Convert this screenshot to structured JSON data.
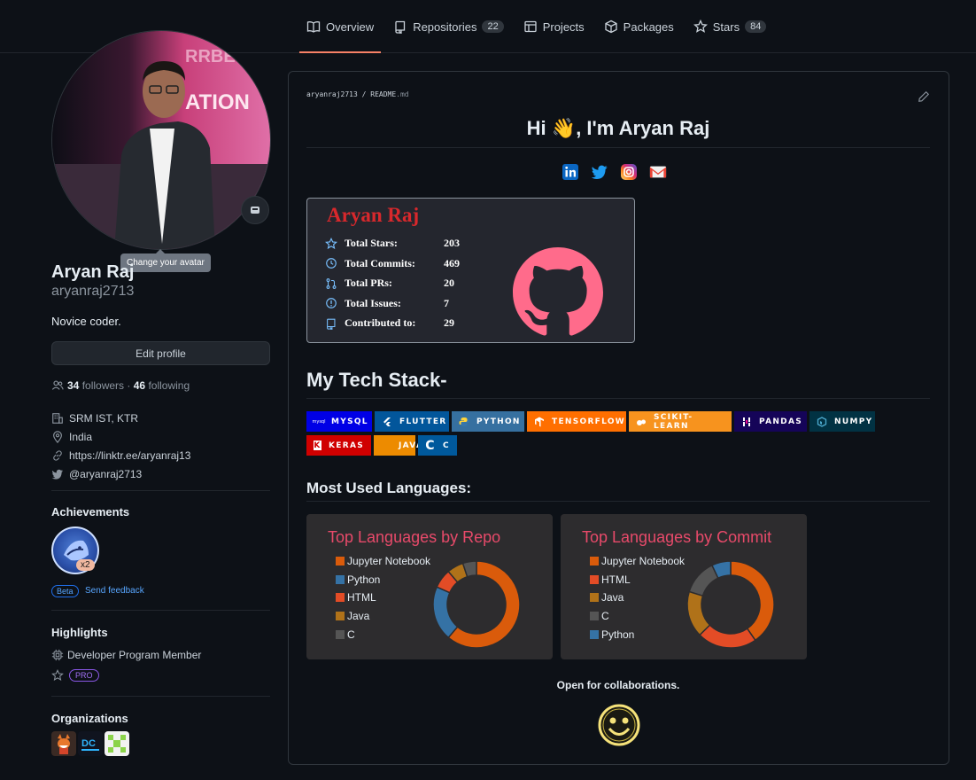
{
  "nav": {
    "tabs": [
      {
        "label": "Overview",
        "icon": "book-icon",
        "count": null,
        "active": true
      },
      {
        "label": "Repositories",
        "icon": "repo-icon",
        "count": "22",
        "active": false
      },
      {
        "label": "Projects",
        "icon": "table-icon",
        "count": null,
        "active": false
      },
      {
        "label": "Packages",
        "icon": "package-icon",
        "count": null,
        "active": false
      },
      {
        "label": "Stars",
        "icon": "star-icon",
        "count": "84",
        "active": false
      }
    ]
  },
  "profile": {
    "avatar_tooltip": "Change your avatar",
    "name": "Aryan Raj",
    "login": "aryanraj2713",
    "bio": "Novice coder.",
    "edit_label": "Edit profile",
    "followers": "34",
    "followers_label": "followers",
    "separator": "·",
    "following": "46",
    "following_label": "following",
    "organization": "SRM IST, KTR",
    "location": "India",
    "website": "https://linktr.ee/aryanraj13",
    "twitter": "@aryanraj2713"
  },
  "achievements": {
    "title": "Achievements",
    "badge_count": "x2",
    "beta": "Beta",
    "feedback": "Send feedback"
  },
  "highlights": {
    "title": "Highlights",
    "program": "Developer Program Member",
    "pro": "PRO"
  },
  "organizations": {
    "title": "Organizations"
  },
  "readme": {
    "breadcrumb_user": "aryanraj2713",
    "breadcrumb_sep": " / ",
    "breadcrumb_file": "README",
    "breadcrumb_ext": ".md",
    "greeting_pre": "Hi ",
    "greeting_emoji": "👋",
    "greeting_post": ", I'm Aryan Raj",
    "tech_title": "My Tech Stack-",
    "langs_title": "Most Used Languages:",
    "collab": "Open for collaborations."
  },
  "stats": {
    "title": "Aryan Raj",
    "rows": [
      {
        "label": "Total Stars:",
        "value": "203",
        "icon": "star-icon"
      },
      {
        "label": "Total Commits:",
        "value": "469",
        "icon": "history-icon"
      },
      {
        "label": "Total PRs:",
        "value": "20",
        "icon": "pull-request-icon"
      },
      {
        "label": "Total Issues:",
        "value": "7",
        "icon": "issue-icon"
      },
      {
        "label": "Contributed to:",
        "value": "29",
        "icon": "repo-icon"
      }
    ],
    "colors": {
      "title": "#d8282c",
      "icon": "#79c0ff",
      "logo": "#ff6b8b"
    }
  },
  "tech_badges": [
    {
      "label": "MYSQL",
      "color": "#0000e6",
      "icon": "mysql-icon",
      "icon_text": "mysql"
    },
    {
      "label": "FLUTTER",
      "color": "#02569b",
      "icon": "flutter-icon",
      "icon_text": ""
    },
    {
      "label": "PYTHON",
      "color": "#3670a0",
      "icon": "python-icon",
      "icon_text": ""
    },
    {
      "label": "TENSORFLOW",
      "color": "#ff6f00",
      "icon": "tensorflow-icon",
      "icon_text": ""
    },
    {
      "label": "SCIKIT-LEARN",
      "color": "#f7931e",
      "icon": "scikit-learn-icon",
      "icon_text": ""
    },
    {
      "label": "PANDAS",
      "color": "#150458",
      "icon": "pandas-icon",
      "icon_text": ""
    },
    {
      "label": "NUMPY",
      "color": "#013243",
      "icon": "numpy-icon",
      "icon_text": ""
    },
    {
      "label": "KERAS",
      "color": "#d00000",
      "icon": "keras-icon",
      "icon_text": "K"
    },
    {
      "label": "JAVA",
      "color": "#ed8b00",
      "icon": "java-icon",
      "icon_text": ""
    },
    {
      "label": "C",
      "color": "#00599c",
      "icon": "c-icon",
      "icon_text": "C"
    }
  ],
  "chart_data": [
    {
      "type": "pie",
      "title": "Top Languages by Repo",
      "categories": [
        "Jupyter Notebook",
        "Python",
        "HTML",
        "Java",
        "C"
      ],
      "values": [
        60,
        20,
        7,
        6,
        5
      ],
      "colors": [
        "#DA5B0B",
        "#3572A5",
        "#e34c26",
        "#b07219",
        "#555555"
      ]
    },
    {
      "type": "pie",
      "title": "Top Languages by Commit",
      "categories": [
        "Jupyter Notebook",
        "HTML",
        "Java",
        "C",
        "Python"
      ],
      "values": [
        40,
        22,
        17,
        13,
        7
      ],
      "colors": [
        "#DA5B0B",
        "#e34c26",
        "#b07219",
        "#555555",
        "#3572A5"
      ]
    }
  ]
}
